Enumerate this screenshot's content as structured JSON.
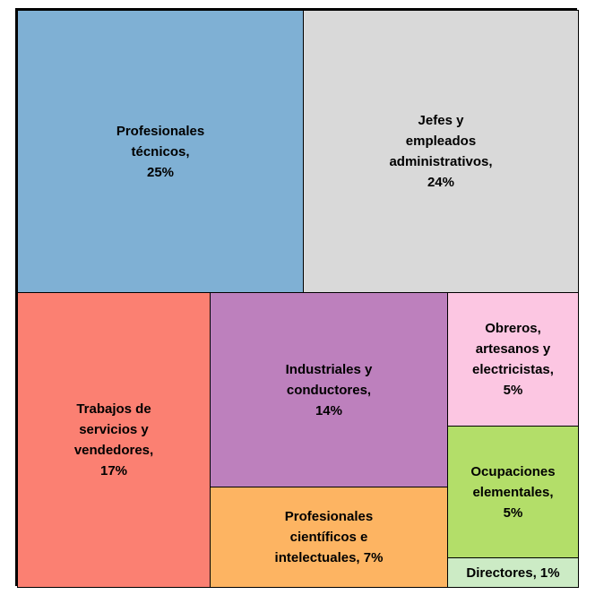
{
  "chart_data": {
    "type": "treemap",
    "categories": [
      "Profesionales técnicos",
      "Jefes y empleados administrativos",
      "Trabajos de servicios y vendedores",
      "Industriales y conductores",
      "Profesionales científicos e intelectuales",
      "Obreros, artesanos y electricistas",
      "Ocupaciones elementales",
      "Directores"
    ],
    "values": [
      25,
      24,
      17,
      14,
      7,
      5,
      5,
      1
    ],
    "unit": "%",
    "colors": [
      "#7fb0d4",
      "#d9d9d9",
      "#fb8072",
      "#bd80bd",
      "#fdb462",
      "#fcc6e2",
      "#b3de69",
      "#ccebc5"
    ],
    "cells": [
      {
        "label_lines": [
          "Profesionales",
          "técnicos,",
          "25%"
        ]
      },
      {
        "label_lines": [
          "Jefes y",
          "empleados",
          "administrativos,",
          "24%"
        ]
      },
      {
        "label_lines": [
          "Trabajos de",
          "servicios y",
          "vendedores,",
          "17%"
        ]
      },
      {
        "label_lines": [
          "Industriales y",
          "conductores,",
          "14%"
        ]
      },
      {
        "label_lines": [
          "Profesionales",
          "científicos e",
          "intelectuales, 7%"
        ]
      },
      {
        "label_lines": [
          "Obreros,",
          "artesanos y",
          "electricistas,",
          "5%"
        ]
      },
      {
        "label_lines": [
          "Ocupaciones",
          "elementales,",
          "5%"
        ]
      },
      {
        "label_lines": [
          "Directores, 1%"
        ]
      }
    ]
  }
}
